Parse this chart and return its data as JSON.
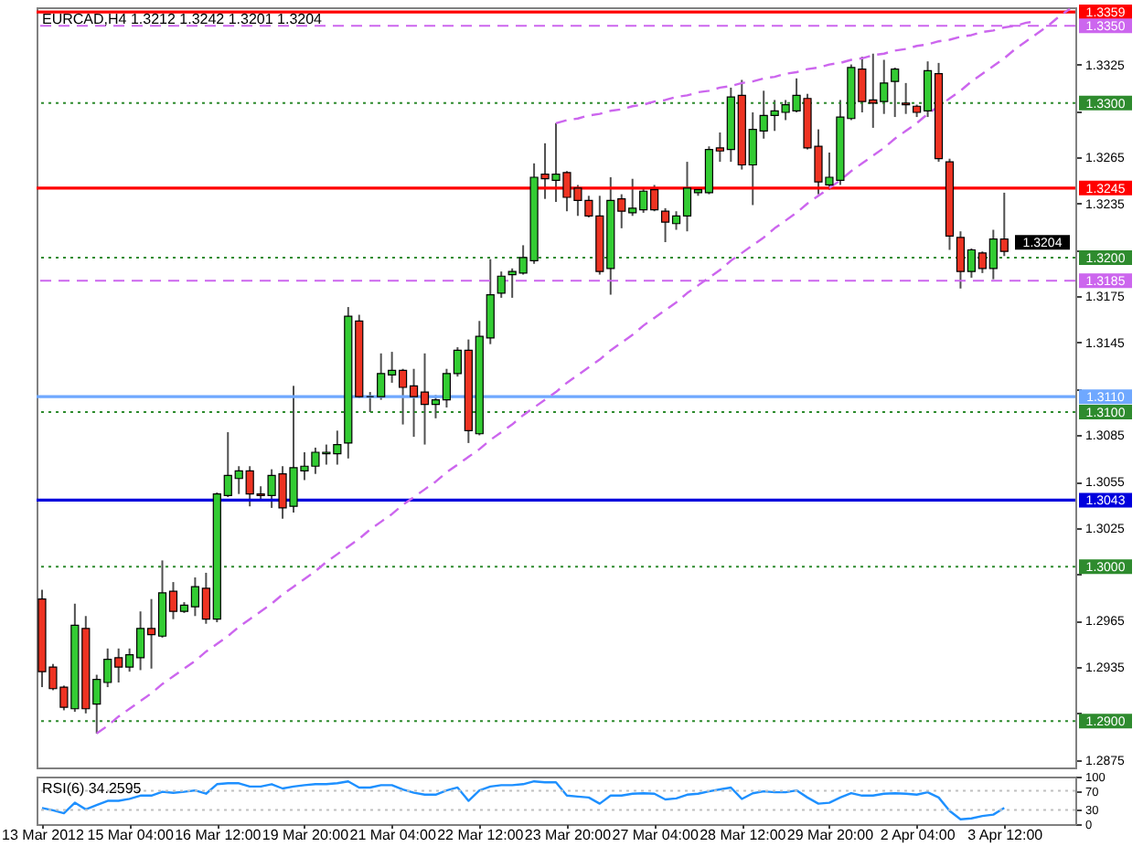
{
  "chart_data": [
    {
      "type": "candlestick",
      "title": "EURCAD,H4 1.3212 1.3242 1.3201 1.3204",
      "tick_labels": "y",
      "categories": [
        null,
        null,
        null,
        null,
        null,
        null,
        null,
        null,
        null,
        null,
        null,
        null,
        null,
        null,
        null,
        null,
        null,
        null,
        null,
        null,
        null,
        null,
        null,
        null,
        null,
        null,
        null,
        null,
        null,
        null,
        null,
        null,
        null,
        null,
        null,
        null,
        null,
        null,
        null,
        null,
        null,
        null,
        null,
        null,
        null,
        null,
        null,
        null,
        null,
        null,
        null,
        null,
        null,
        null,
        null,
        null,
        null,
        null,
        null,
        null,
        null,
        null,
        null,
        null,
        null,
        null,
        null,
        null,
        null,
        null,
        null,
        null,
        null,
        null,
        null,
        null,
        null,
        null,
        null,
        null,
        null,
        null,
        null,
        null,
        null,
        null,
        null,
        null,
        null,
        null,
        null,
        null,
        null,
        null,
        null
      ],
      "ohlc": [
        [
          1.2979,
          1.2985,
          1.2922,
          1.2932
        ],
        [
          1.2935,
          1.2937,
          1.292,
          1.2921
        ],
        [
          1.2922,
          1.2923,
          1.2907,
          1.2909
        ],
        [
          1.2908,
          1.2976,
          1.2906,
          1.2962
        ],
        [
          1.296,
          1.2968,
          1.2905,
          1.2908
        ],
        [
          1.2911,
          1.293,
          1.2892,
          1.2927
        ],
        [
          1.2925,
          1.2947,
          1.2922,
          1.294
        ],
        [
          1.2941,
          1.2947,
          1.2925,
          1.2935
        ],
        [
          1.2935,
          1.2947,
          1.2932,
          1.2943
        ],
        [
          1.2941,
          1.2971,
          1.2933,
          1.296
        ],
        [
          1.296,
          1.2979,
          1.2934,
          1.2956
        ],
        [
          1.2955,
          1.3004,
          1.2954,
          1.2983
        ],
        [
          1.2984,
          1.299,
          1.2966,
          1.2971
        ],
        [
          1.2971,
          1.2977,
          1.297,
          1.2975
        ],
        [
          1.2974,
          1.2993,
          1.2968,
          1.2987
        ],
        [
          1.2986,
          1.2996,
          1.2963,
          1.2966
        ],
        [
          1.2966,
          1.3048,
          1.2964,
          1.3047
        ],
        [
          1.3046,
          1.3087,
          1.3045,
          1.3059
        ],
        [
          1.3057,
          1.3065,
          1.3047,
          1.3062
        ],
        [
          1.3062,
          1.3065,
          1.3039,
          1.3047
        ],
        [
          1.3047,
          1.3052,
          1.3043,
          1.3046
        ],
        [
          1.3046,
          1.3063,
          1.3038,
          1.3059
        ],
        [
          1.306,
          1.3065,
          1.3031,
          1.3038
        ],
        [
          1.3039,
          1.3117,
          1.3035,
          1.3064
        ],
        [
          1.3062,
          1.3074,
          1.3056,
          1.3065
        ],
        [
          1.3065,
          1.3077,
          1.306,
          1.3074
        ],
        [
          1.3073,
          1.3079,
          1.3066,
          1.3074
        ],
        [
          1.3073,
          1.3088,
          1.3066,
          1.3079
        ],
        [
          1.308,
          1.3168,
          1.307,
          1.3162
        ],
        [
          1.3159,
          1.3163,
          1.3109,
          1.311
        ],
        [
          1.311,
          1.3113,
          1.31,
          1.311
        ],
        [
          1.311,
          1.3138,
          1.3108,
          1.3125
        ],
        [
          1.3124,
          1.3139,
          1.3119,
          1.3127
        ],
        [
          1.3127,
          1.3128,
          1.3092,
          1.3116
        ],
        [
          1.3117,
          1.3128,
          1.3084,
          1.311
        ],
        [
          1.3113,
          1.3138,
          1.3079,
          1.3105
        ],
        [
          1.3105,
          1.3111,
          1.3096,
          1.3108
        ],
        [
          1.3108,
          1.3128,
          1.3103,
          1.3125
        ],
        [
          1.3125,
          1.3142,
          1.3123,
          1.314
        ],
        [
          1.314,
          1.3147,
          1.308,
          1.3088
        ],
        [
          1.3086,
          1.3159,
          1.3085,
          1.3149
        ],
        [
          1.3148,
          1.3199,
          1.3144,
          1.3176
        ],
        [
          1.3177,
          1.3191,
          1.3174,
          1.3188
        ],
        [
          1.3189,
          1.3193,
          1.3174,
          1.3191
        ],
        [
          1.319,
          1.3208,
          1.3189,
          1.32
        ],
        [
          1.3198,
          1.3261,
          1.3196,
          1.3252
        ],
        [
          1.3254,
          1.3274,
          1.3238,
          1.3251
        ],
        [
          1.325,
          1.3287,
          1.3236,
          1.3254
        ],
        [
          1.3255,
          1.3256,
          1.323,
          1.3239
        ],
        [
          1.3245,
          1.3247,
          1.3227,
          1.3237
        ],
        [
          1.3237,
          1.324,
          1.3226,
          1.3227
        ],
        [
          1.3227,
          1.324,
          1.3189,
          1.3191
        ],
        [
          1.3193,
          1.3252,
          1.3176,
          1.3237
        ],
        [
          1.3238,
          1.3241,
          1.3219,
          1.323
        ],
        [
          1.3229,
          1.3251,
          1.3227,
          1.3232
        ],
        [
          1.3231,
          1.3245,
          1.3229,
          1.3243
        ],
        [
          1.3244,
          1.3247,
          1.323,
          1.3231
        ],
        [
          1.323,
          1.3232,
          1.321,
          1.3223
        ],
        [
          1.3222,
          1.323,
          1.3218,
          1.3227
        ],
        [
          1.3227,
          1.3262,
          1.3217,
          1.3245
        ],
        [
          1.3242,
          1.3245,
          1.324,
          1.3244
        ],
        [
          1.3242,
          1.3272,
          1.3241,
          1.327
        ],
        [
          1.3271,
          1.3281,
          1.3262,
          1.3269
        ],
        [
          1.327,
          1.331,
          1.3262,
          1.3304
        ],
        [
          1.3305,
          1.3315,
          1.3257,
          1.326
        ],
        [
          1.326,
          1.3294,
          1.3234,
          1.3283
        ],
        [
          1.3282,
          1.3308,
          1.3277,
          1.3292
        ],
        [
          1.3292,
          1.3302,
          1.3282,
          1.3295
        ],
        [
          1.3294,
          1.3302,
          1.3289,
          1.3299
        ],
        [
          1.3295,
          1.3316,
          1.3294,
          1.3305
        ],
        [
          1.3303,
          1.3306,
          1.327,
          1.3271
        ],
        [
          1.3272,
          1.3283,
          1.3241,
          1.3249
        ],
        [
          1.3247,
          1.3268,
          1.3244,
          1.3252
        ],
        [
          1.325,
          1.3302,
          1.3247,
          1.3291
        ],
        [
          1.329,
          1.3325,
          1.3289,
          1.3323
        ],
        [
          1.3322,
          1.333,
          1.3294,
          1.3301
        ],
        [
          1.3302,
          1.3332,
          1.3284,
          1.33
        ],
        [
          1.3301,
          1.3328,
          1.3293,
          1.3313
        ],
        [
          1.3314,
          1.3323,
          1.3291,
          1.3322
        ],
        [
          1.33,
          1.3313,
          1.3293,
          1.3299
        ],
        [
          1.3298,
          1.3299,
          1.3291,
          1.3294
        ],
        [
          1.3295,
          1.3327,
          1.3291,
          1.3321
        ],
        [
          1.3319,
          1.3326,
          1.3262,
          1.3264
        ],
        [
          1.3262,
          1.3264,
          1.3205,
          1.3214
        ],
        [
          1.3213,
          1.3217,
          1.318,
          1.3191
        ],
        [
          1.3191,
          1.3206,
          1.3187,
          1.3205
        ],
        [
          1.3203,
          1.3204,
          1.319,
          1.3193
        ],
        [
          1.3193,
          1.3218,
          1.3186,
          1.3212
        ],
        [
          1.3212,
          1.3242,
          1.3201,
          1.3204
        ],
        null,
        null,
        null,
        null,
        null,
        null
      ],
      "colors": [
        "#ee3322",
        "#ee3322",
        "#ee3322",
        "#33cc33",
        "#ee3322",
        "#33cc33",
        "#33cc33",
        "#ee3322",
        "#33cc33",
        "#33cc33",
        "#ee3322",
        "#33cc33",
        "#ee3322",
        "#33cc33",
        "#33cc33",
        "#ee3322",
        "#33cc33",
        "#33cc33",
        "#33cc33",
        "#ee3322",
        "#ee3322",
        "#33cc33",
        "#ee3322",
        "#33cc33",
        "#33cc33",
        "#33cc33",
        "#33cc33",
        "#33cc33",
        "#33cc33",
        "#ee3322",
        "#000000",
        "#33cc33",
        "#33cc33",
        "#ee3322",
        "#ee3322",
        "#ee3322",
        "#33cc33",
        "#33cc33",
        "#33cc33",
        "#ee3322",
        "#33cc33",
        "#33cc33",
        "#33cc33",
        "#33cc33",
        "#33cc33",
        "#33cc33",
        "#ee3322",
        "#33cc33",
        "#ee3322",
        "#ee3322",
        "#ee3322",
        "#ee3322",
        "#33cc33",
        "#ee3322",
        "#33cc33",
        "#33cc33",
        "#ee3322",
        "#ee3322",
        "#33cc33",
        "#33cc33",
        "#33cc33",
        "#33cc33",
        "#ee3322",
        "#33cc33",
        "#ee3322",
        "#33cc33",
        "#33cc33",
        "#33cc33",
        "#33cc33",
        "#33cc33",
        "#ee3322",
        "#ee3322",
        "#33cc33",
        "#33cc33",
        "#33cc33",
        "#ee3322",
        "#ee3322",
        "#33cc33",
        "#33cc33",
        "#ee3322",
        "#ee3322",
        "#33cc33",
        "#ee3322",
        "#ee3322",
        "#ee3322",
        "#33cc33",
        "#ee3322",
        "#33cc33",
        "#ee3322",
        null,
        null,
        null,
        null,
        null,
        null
      ],
      "series": [
        {
          "type": "line",
          "color": "#cc66ee",
          "line_style": "dashed",
          "values": [
            null,
            null,
            null,
            null,
            null,
            1.2892,
            1.2897,
            1.2903,
            1.2908,
            1.2913,
            1.2918,
            1.2924,
            1.2929,
            1.2934,
            1.2939,
            1.2945,
            1.295,
            1.2955,
            1.2961,
            1.2966,
            1.2971,
            1.2976,
            1.2982,
            1.2987,
            1.2992,
            1.2997,
            1.3003,
            1.3008,
            1.3013,
            1.3018,
            1.3024,
            1.3029,
            1.3034,
            1.304,
            1.3045,
            1.305,
            1.3055,
            1.3061,
            1.3066,
            1.3071,
            1.3076,
            1.3082,
            1.3087,
            1.3092,
            1.3098,
            1.3103,
            1.3108,
            1.3113,
            1.3119,
            1.3124,
            1.3129,
            1.3134,
            1.314,
            1.3145,
            1.315,
            1.3156,
            1.3161,
            1.3166,
            1.3171,
            1.3177,
            1.3182,
            1.3187,
            1.3192,
            1.3198,
            1.3203,
            1.3208,
            1.3213,
            1.3219,
            1.3224,
            1.3229,
            1.3235,
            1.324,
            1.3245,
            1.325,
            1.3256,
            1.3261,
            1.3266,
            1.3271,
            1.3277,
            1.3282,
            1.3287,
            1.3293,
            1.3298,
            1.3303,
            1.3308,
            1.3314,
            1.3319,
            1.3324,
            1.3329,
            1.3335,
            1.334,
            1.3345,
            1.335,
            1.3356,
            1.3361
          ]
        },
        {
          "type": "line",
          "color": "#cc66ee",
          "line_style": "dashed",
          "values": [
            null,
            null,
            null,
            null,
            null,
            null,
            null,
            null,
            null,
            null,
            null,
            null,
            null,
            null,
            null,
            null,
            null,
            null,
            null,
            null,
            null,
            null,
            null,
            null,
            null,
            null,
            null,
            null,
            null,
            null,
            null,
            null,
            null,
            null,
            null,
            null,
            null,
            null,
            null,
            null,
            null,
            null,
            null,
            null,
            null,
            null,
            null,
            1.3287,
            1.3289,
            1.329,
            1.3292,
            1.3293,
            1.3295,
            1.3296,
            1.3298,
            1.3299,
            1.3301,
            1.3302,
            1.3304,
            1.3305,
            1.3307,
            1.3308,
            1.331,
            1.3311,
            1.3313,
            1.3314,
            1.3316,
            1.3317,
            1.3319,
            1.332,
            1.3322,
            1.3323,
            1.3325,
            1.3326,
            1.3328,
            1.3329,
            1.3331,
            1.3332,
            1.3334,
            1.3335,
            1.3337,
            1.3338,
            1.334,
            1.3341,
            1.3343,
            1.3344,
            1.3346,
            1.3347,
            1.3349,
            1.335,
            1.3352,
            1.3353,
            null,
            null,
            null
          ]
        }
      ],
      "ylim": [
        1.287,
        1.3362
      ],
      "yticks": [
        1.3325,
        {
          "value": 1.3295,
          "label": null
        },
        1.3265,
        1.3235,
        {
          "value": 1.3205,
          "label": null
        },
        1.3175,
        1.3145,
        {
          "value": 1.3115,
          "label": null
        },
        1.3085,
        1.3055,
        1.3025,
        {
          "value": 1.2995,
          "label": null
        },
        1.2965,
        1.2935,
        {
          "value": 1.2905,
          "label": null
        },
        1.2875
      ],
      "ref_lines": [
        {
          "axis": "y",
          "value": 1.3359,
          "label": "1.3359",
          "color": "#ff0000",
          "line_style": "solid"
        },
        {
          "axis": "y",
          "value": 1.335,
          "label": "1.3350",
          "color": "#cc66ee",
          "line_style": "dashed"
        },
        {
          "axis": "y",
          "value": 1.33,
          "label": "1.3300",
          "color": "#2e8b2e",
          "line_style": "dotted"
        },
        {
          "axis": "y",
          "value": 1.3245,
          "label": "1.3245",
          "color": "#ff0000",
          "line_style": "solid"
        },
        {
          "axis": "y",
          "value": 1.32,
          "label": "1.3200",
          "color": "#2e8b2e",
          "line_style": "dotted"
        },
        {
          "axis": "y",
          "value": 1.3185,
          "label": "1.3185",
          "color": "#cc66ee",
          "line_style": "dashed"
        },
        {
          "axis": "y",
          "value": 1.311,
          "label": "1.3110",
          "color": "#6fa8ff",
          "line_style": "solid"
        },
        {
          "axis": "y",
          "value": 1.31,
          "label": "1.3100",
          "color": "#2e8b2e",
          "line_style": "dotted"
        },
        {
          "axis": "y",
          "value": 1.3043,
          "label": "1.3043",
          "color": "#0000dd",
          "line_style": "solid"
        },
        {
          "axis": "y",
          "value": 1.3,
          "label": "1.3000",
          "color": "#2e8b2e",
          "line_style": "dotted"
        },
        {
          "axis": "y",
          "value": 1.29,
          "label": "1.2900",
          "color": "#2e8b2e",
          "line_style": "dotted"
        }
      ],
      "annotations": [
        "1.3204"
      ]
    },
    {
      "type": "line",
      "title": "RSI(6) 34.2595",
      "categories": [
        "13 Mar 2012",
        null,
        null,
        null,
        null,
        null,
        null,
        null,
        "15 Mar 04:00",
        null,
        null,
        null,
        null,
        null,
        null,
        null,
        "16 Mar 12:00",
        null,
        null,
        null,
        null,
        null,
        null,
        null,
        "19 Mar 20:00",
        null,
        null,
        null,
        null,
        null,
        null,
        null,
        "21 Mar 04:00",
        null,
        null,
        null,
        null,
        null,
        null,
        null,
        "22 Mar 12:00",
        null,
        null,
        null,
        null,
        null,
        null,
        null,
        "23 Mar 20:00",
        null,
        null,
        null,
        null,
        null,
        null,
        null,
        "27 Mar 04:00",
        null,
        null,
        null,
        null,
        null,
        null,
        null,
        "28 Mar 12:00",
        null,
        null,
        null,
        null,
        null,
        null,
        null,
        "29 Mar 20:00",
        null,
        null,
        null,
        null,
        null,
        null,
        null,
        "2 Apr 04:00",
        null,
        null,
        null,
        null,
        null,
        null,
        null,
        "3 Apr 12:00",
        null,
        null,
        null,
        null,
        null,
        null
      ],
      "series": [
        {
          "color": "#1e90ff",
          "values": [
            34,
            29,
            23,
            45,
            31,
            40,
            49,
            49,
            53,
            60,
            60,
            68,
            66,
            68,
            71,
            64,
            84,
            86,
            86,
            79,
            79,
            84,
            75,
            79,
            82,
            84,
            84,
            86,
            90,
            77,
            77,
            82,
            82,
            73,
            66,
            62,
            62,
            71,
            77,
            49,
            71,
            79,
            82,
            82,
            84,
            90,
            88,
            88,
            60,
            58,
            56,
            43,
            60,
            60,
            64,
            65,
            64,
            52,
            54,
            62,
            64,
            69,
            73,
            77,
            53,
            65,
            69,
            67,
            67,
            71,
            56,
            43,
            45,
            56,
            65,
            60,
            60,
            64,
            65,
            64,
            62,
            67,
            56,
            28,
            10,
            12,
            17,
            20,
            34,
            null,
            null,
            null,
            null,
            null,
            null
          ]
        }
      ],
      "ylim": [
        0,
        100
      ],
      "yticks": [
        100,
        70,
        30,
        0
      ],
      "ref_lines": [
        {
          "axis": "y",
          "value": 70,
          "color": "#c0c0c0",
          "line_style": "dotted"
        },
        {
          "axis": "y",
          "value": 30,
          "color": "#c0c0c0",
          "line_style": "dotted"
        }
      ]
    }
  ]
}
